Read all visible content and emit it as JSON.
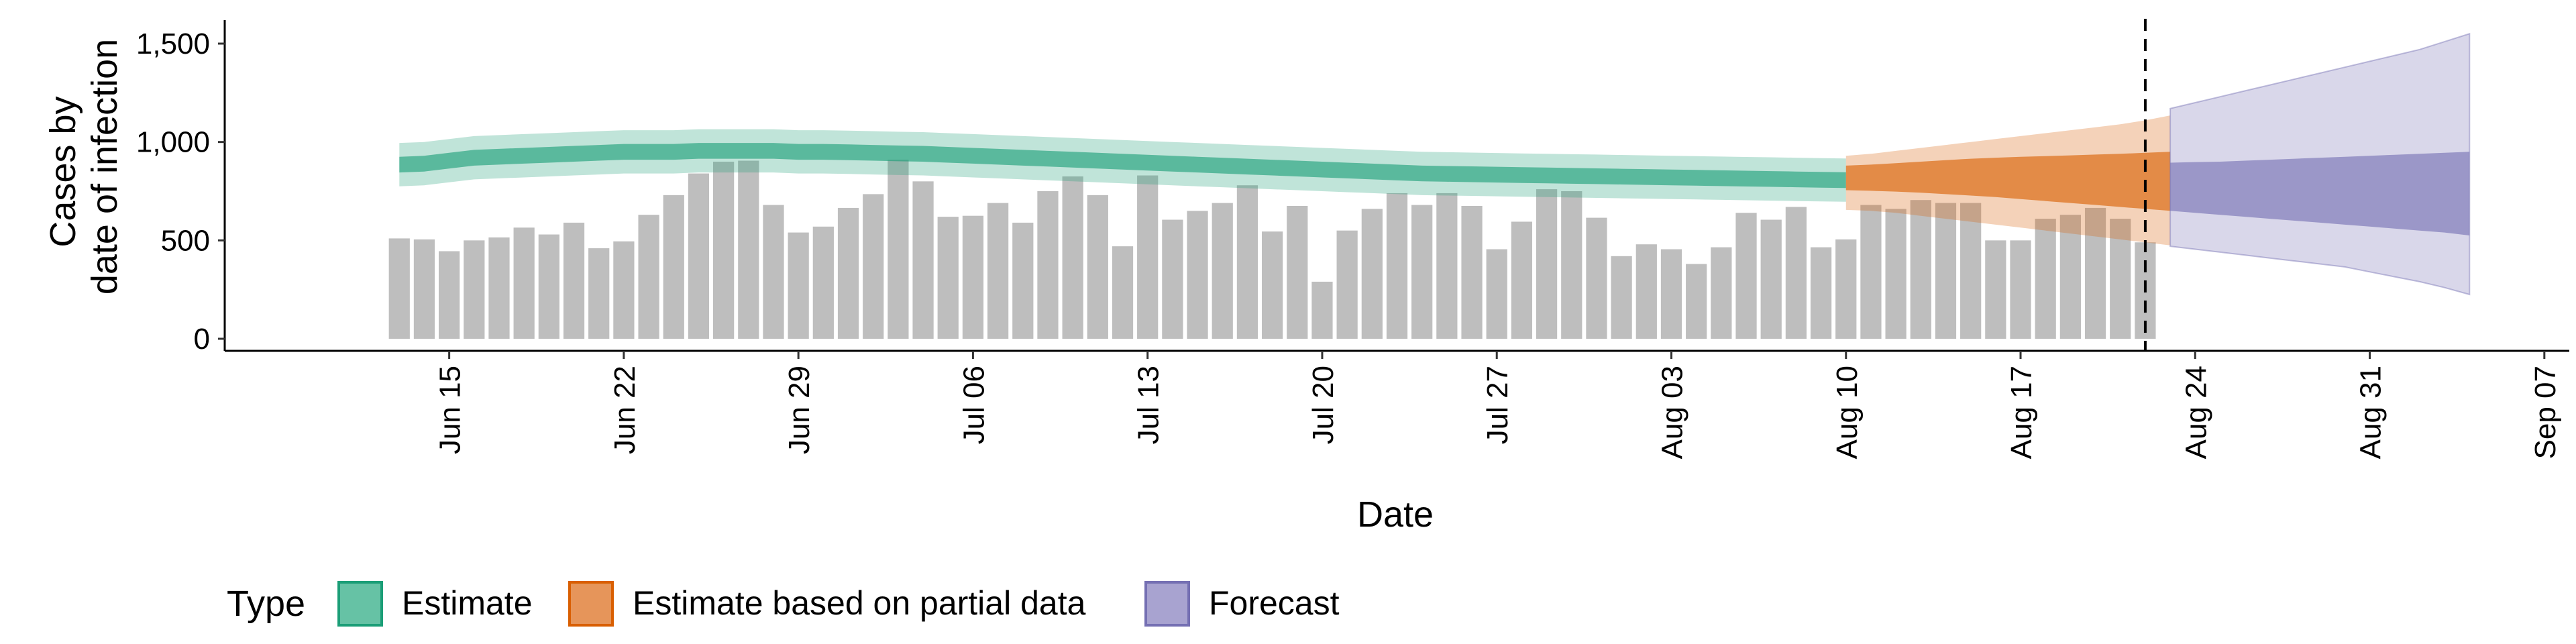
{
  "chart_data": {
    "type": "bar",
    "xlabel": "Date",
    "ylabel_lines": [
      "Cases by",
      "date of infection"
    ],
    "ylim": [
      0,
      1600
    ],
    "y_ticks": [
      0,
      500,
      1000,
      1500
    ],
    "y_tick_labels": [
      "0",
      "500",
      "1,000",
      "1,500"
    ],
    "x_tick_dates": [
      "2020-06-15",
      "2020-06-22",
      "2020-06-29",
      "2020-07-06",
      "2020-07-13",
      "2020-07-20",
      "2020-07-27",
      "2020-08-03",
      "2020-08-10",
      "2020-08-17",
      "2020-08-24",
      "2020-08-31",
      "2020-09-07"
    ],
    "x_tick_labels": [
      "Jun 15",
      "Jun 22",
      "Jun 29",
      "Jul 06",
      "Jul 13",
      "Jul 20",
      "Jul 27",
      "Aug 03",
      "Aug 10",
      "Aug 17",
      "Aug 24",
      "Aug 31",
      "Sep 07"
    ],
    "xlim": [
      "2020-06-06",
      "2020-09-08"
    ],
    "observed": {
      "start_date": "2020-06-13",
      "values": [
        510,
        505,
        445,
        500,
        515,
        565,
        530,
        590,
        460,
        495,
        630,
        730,
        840,
        900,
        905,
        680,
        540,
        570,
        665,
        735,
        910,
        800,
        620,
        625,
        690,
        590,
        750,
        825,
        730,
        470,
        830,
        605,
        650,
        690,
        780,
        545,
        675,
        290,
        550,
        660,
        740,
        680,
        740,
        675,
        455,
        595,
        760,
        750,
        615,
        420,
        480,
        455,
        380,
        465,
        640,
        605,
        670,
        465,
        505,
        680,
        660,
        705,
        690,
        690,
        500,
        500,
        610,
        630,
        665,
        610,
        490
      ]
    },
    "estimate": {
      "start_date": "2020-06-13",
      "median": [
        885,
        890,
        905,
        920,
        925,
        930,
        935,
        940,
        945,
        950,
        950,
        950,
        955,
        955,
        955,
        955,
        950,
        950,
        948,
        945,
        942,
        940,
        935,
        930,
        925,
        920,
        915,
        910,
        905,
        900,
        895,
        890,
        885,
        880,
        875,
        870,
        865,
        860,
        855,
        850,
        845,
        840,
        838,
        836,
        834,
        832,
        830,
        828,
        826,
        824,
        822,
        820,
        818,
        816,
        814,
        812,
        810,
        808,
        806
      ],
      "inner_low": [
        845,
        850,
        865,
        880,
        885,
        890,
        895,
        900,
        905,
        910,
        910,
        910,
        915,
        915,
        915,
        915,
        910,
        910,
        908,
        905,
        902,
        900,
        895,
        890,
        885,
        880,
        875,
        870,
        865,
        860,
        855,
        850,
        845,
        840,
        835,
        830,
        825,
        820,
        815,
        810,
        805,
        800,
        798,
        796,
        794,
        792,
        790,
        788,
        786,
        784,
        782,
        780,
        778,
        776,
        774,
        772,
        770,
        768,
        766
      ],
      "inner_high": [
        925,
        930,
        945,
        960,
        965,
        970,
        975,
        980,
        985,
        990,
        990,
        990,
        995,
        995,
        995,
        995,
        990,
        990,
        988,
        985,
        982,
        980,
        975,
        970,
        965,
        960,
        955,
        950,
        945,
        940,
        935,
        930,
        925,
        920,
        915,
        910,
        905,
        900,
        895,
        890,
        885,
        880,
        878,
        876,
        874,
        872,
        870,
        868,
        866,
        864,
        862,
        860,
        858,
        856,
        854,
        852,
        850,
        848,
        846
      ],
      "outer_low": [
        775,
        780,
        795,
        810,
        815,
        820,
        825,
        830,
        835,
        840,
        840,
        840,
        845,
        845,
        845,
        845,
        840,
        840,
        838,
        835,
        832,
        830,
        825,
        820,
        815,
        810,
        805,
        800,
        795,
        790,
        785,
        780,
        775,
        770,
        765,
        760,
        755,
        750,
        745,
        740,
        735,
        730,
        728,
        726,
        724,
        722,
        720,
        718,
        716,
        714,
        712,
        710,
        708,
        706,
        704,
        702,
        700,
        698,
        696
      ],
      "outer_high": [
        995,
        1000,
        1015,
        1030,
        1035,
        1040,
        1045,
        1050,
        1055,
        1060,
        1060,
        1060,
        1065,
        1065,
        1065,
        1065,
        1060,
        1060,
        1058,
        1055,
        1052,
        1050,
        1045,
        1040,
        1035,
        1030,
        1025,
        1020,
        1015,
        1010,
        1005,
        1000,
        995,
        990,
        985,
        980,
        975,
        970,
        965,
        960,
        955,
        950,
        948,
        946,
        944,
        942,
        940,
        938,
        936,
        934,
        932,
        930,
        928,
        926,
        924,
        922,
        920,
        918,
        916
      ]
    },
    "partial_estimate": {
      "start_date": "2020-08-10",
      "median": [
        820,
        822,
        825,
        830,
        835,
        840,
        845,
        850,
        852,
        855,
        858,
        860,
        862,
        865
      ],
      "inner_low": [
        755,
        752,
        748,
        742,
        735,
        728,
        720,
        710,
        700,
        690,
        680,
        670,
        660,
        650
      ],
      "inner_high": [
        880,
        885,
        892,
        900,
        908,
        915,
        920,
        925,
        928,
        932,
        936,
        940,
        945,
        950
      ],
      "outer_low": [
        655,
        650,
        640,
        625,
        610,
        595,
        580,
        565,
        550,
        535,
        520,
        505,
        490,
        475
      ],
      "outer_high": [
        930,
        940,
        955,
        970,
        985,
        1000,
        1015,
        1030,
        1045,
        1060,
        1075,
        1090,
        1110,
        1135
      ]
    },
    "forecast": {
      "start_date": "2020-08-23",
      "median": [
        770,
        772,
        775,
        778,
        780,
        782,
        784,
        786,
        788,
        790,
        792,
        794,
        795
      ],
      "inner_low": [
        650,
        640,
        630,
        620,
        610,
        600,
        590,
        580,
        570,
        560,
        550,
        540,
        525
      ],
      "inner_high": [
        895,
        898,
        900,
        905,
        910,
        915,
        920,
        925,
        930,
        935,
        940,
        945,
        950
      ],
      "outer_low": [
        470,
        455,
        440,
        425,
        410,
        395,
        380,
        365,
        340,
        315,
        290,
        260,
        225
      ],
      "outer_high": [
        1170,
        1200,
        1230,
        1260,
        1290,
        1320,
        1350,
        1380,
        1410,
        1440,
        1470,
        1510,
        1550
      ]
    },
    "vline_date": "2020-08-22",
    "legend": {
      "title": "Type",
      "placement": "bottom",
      "items": [
        {
          "label": "Estimate",
          "fill": "#66C2A5",
          "stroke": "#1B9E77"
        },
        {
          "label": "Estimate based on partial data",
          "fill": "#E6955A",
          "stroke": "#D95F02"
        },
        {
          "label": "Forecast",
          "fill": "#A8A3D0",
          "stroke": "#7570B3"
        }
      ]
    },
    "colors": {
      "bars": "#BEBEBE",
      "estimate": "#1B9E77",
      "partial": "#D95F02",
      "forecast": "#7570B3"
    }
  }
}
